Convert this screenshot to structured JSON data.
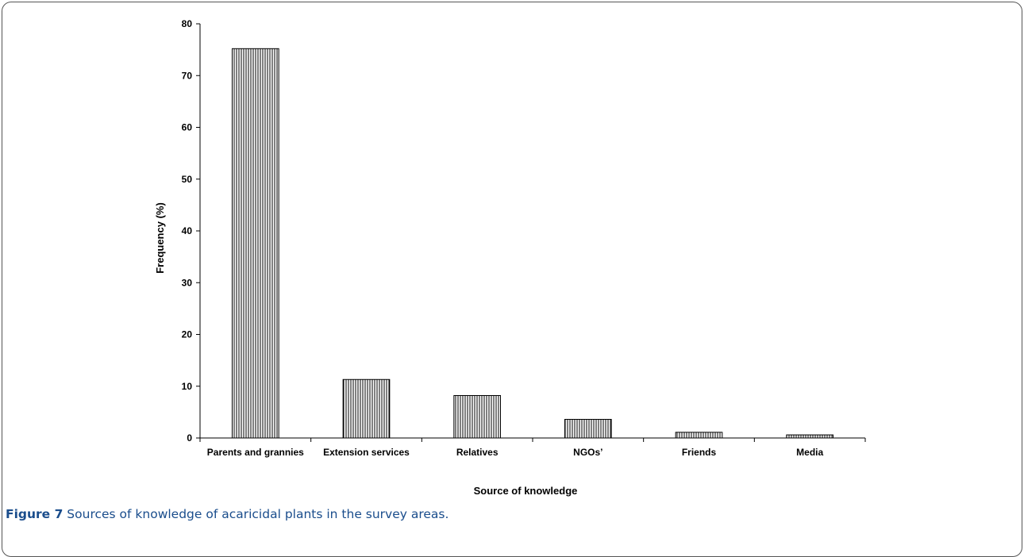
{
  "chart_data": {
    "type": "bar",
    "categories": [
      "Parents and grannies",
      "Extension services",
      "Relatives",
      "NGOs’",
      "Friends",
      "Media"
    ],
    "values": [
      75.2,
      11.3,
      8.2,
      3.6,
      1.1,
      0.6
    ],
    "xlabel": "Source of knowledge",
    "ylabel": "Frequency (%)",
    "ylim": [
      0,
      80
    ],
    "yticks": [
      0,
      10,
      20,
      30,
      40,
      50,
      60,
      70,
      80
    ],
    "grid": false,
    "bar_fill": "vertical-hatch"
  },
  "caption": {
    "label": "Figure 7",
    "text": " Sources of knowledge of acaricidal plants in the survey areas."
  },
  "colors": {
    "caption": "#1a4d8c",
    "bar_stroke": "#000000",
    "hatch": "#000000"
  }
}
